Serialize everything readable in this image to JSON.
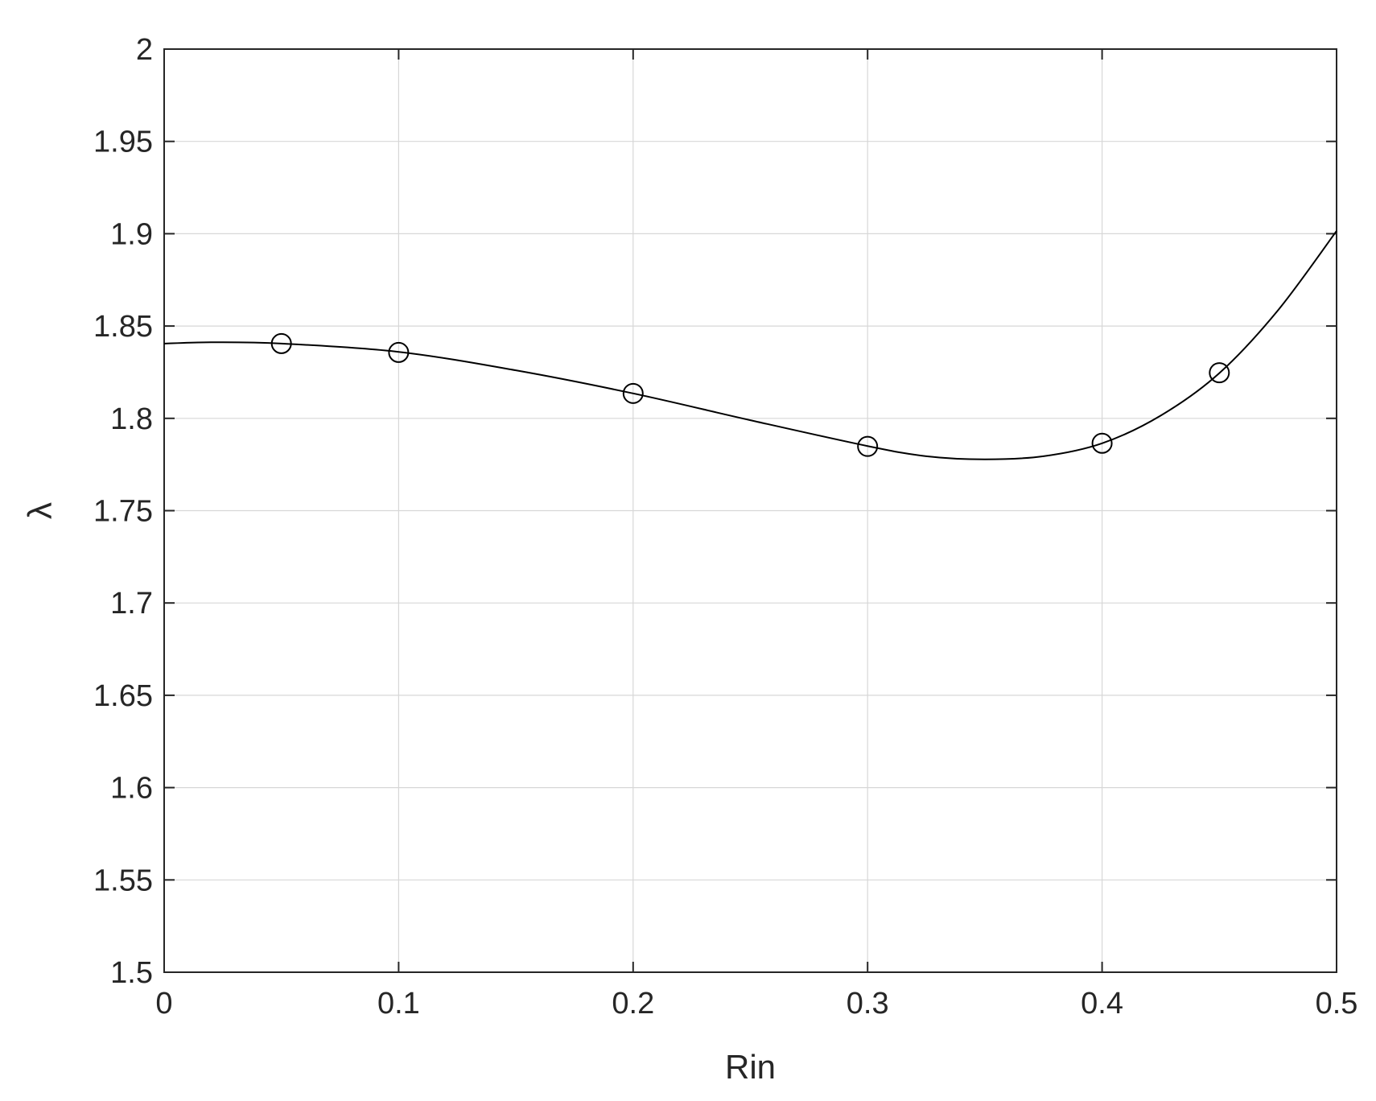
{
  "chart_data": {
    "type": "line",
    "title": "",
    "xlabel": "Rin",
    "ylabel": "λ",
    "xlim": [
      0,
      0.5
    ],
    "ylim": [
      1.5,
      2
    ],
    "grid": true,
    "x_ticks": [
      "0",
      "0.1",
      "0.2",
      "0.3",
      "0.4",
      "0.5"
    ],
    "y_ticks": [
      "1.5",
      "1.55",
      "1.6",
      "1.65",
      "1.7",
      "1.75",
      "1.8",
      "1.85",
      "1.9",
      "1.95",
      "2"
    ],
    "series": [
      {
        "style": "markers",
        "marker": "circle",
        "x": [
          0.05,
          0.1,
          0.2,
          0.3,
          0.4,
          0.45
        ],
        "y": [
          1.8405,
          1.8357,
          1.8135,
          1.7848,
          1.7865,
          1.8247
        ]
      },
      {
        "style": "line",
        "x": [
          0,
          0.02,
          0.05,
          0.1,
          0.15,
          0.2,
          0.25,
          0.3,
          0.325,
          0.35,
          0.375,
          0.4,
          0.425,
          0.45,
          0.475,
          0.5
        ],
        "y": [
          1.8405,
          1.8412,
          1.8405,
          1.836,
          1.826,
          1.8135,
          1.799,
          1.785,
          1.7795,
          1.7778,
          1.7795,
          1.7865,
          1.8015,
          1.8245,
          1.8585,
          1.9015
        ]
      }
    ],
    "colors": {
      "line": "#000000",
      "axes": "#262626",
      "grid": "#d7d7d7"
    }
  }
}
